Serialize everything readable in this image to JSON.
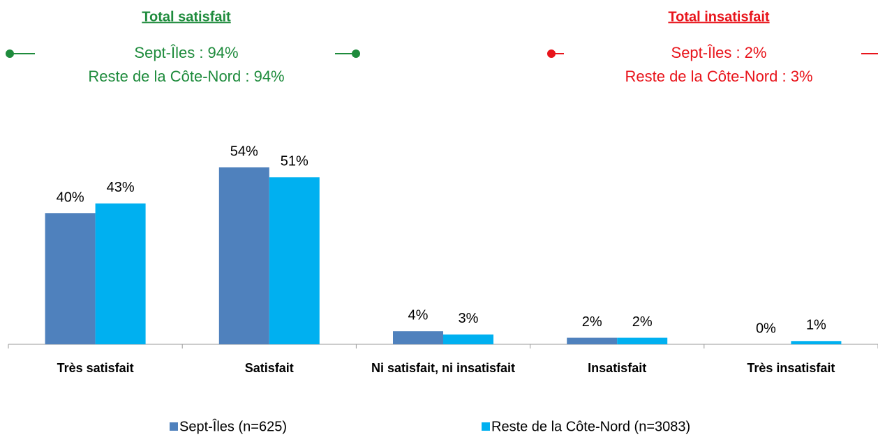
{
  "chart_data": {
    "type": "bar",
    "categories": [
      "Très satisfait",
      "Satisfait",
      "Ni satisfait, ni insatisfait",
      "Insatisfait",
      "Très insatisfait"
    ],
    "series": [
      {
        "name": "Sept-Îles (n=625)",
        "color": "#4f81bd",
        "values": [
          40,
          54,
          4,
          2,
          0
        ],
        "value_labels": [
          "40%",
          "54%",
          "4%",
          "2%",
          "0%"
        ]
      },
      {
        "name": "Reste de la Côte-Nord (n=3083)",
        "color": "#00b0f0",
        "values": [
          43,
          51,
          3,
          2,
          1
        ],
        "value_labels": [
          "43%",
          "51%",
          "3%",
          "2%",
          "1%"
        ]
      }
    ],
    "ylim": [
      0,
      100
    ],
    "annotations": [
      {
        "title": "Total satisfait",
        "lines": [
          "Sept-Îles : 94%",
          "Reste de la Côte-Nord : 94%"
        ],
        "color": "#1e8b3c"
      },
      {
        "title": "Total insatisfait",
        "lines": [
          "Sept-Îles : 2%",
          "Reste de la Côte-Nord : 3%"
        ],
        "color": "#e8141b"
      }
    ],
    "legend": "bottom"
  }
}
